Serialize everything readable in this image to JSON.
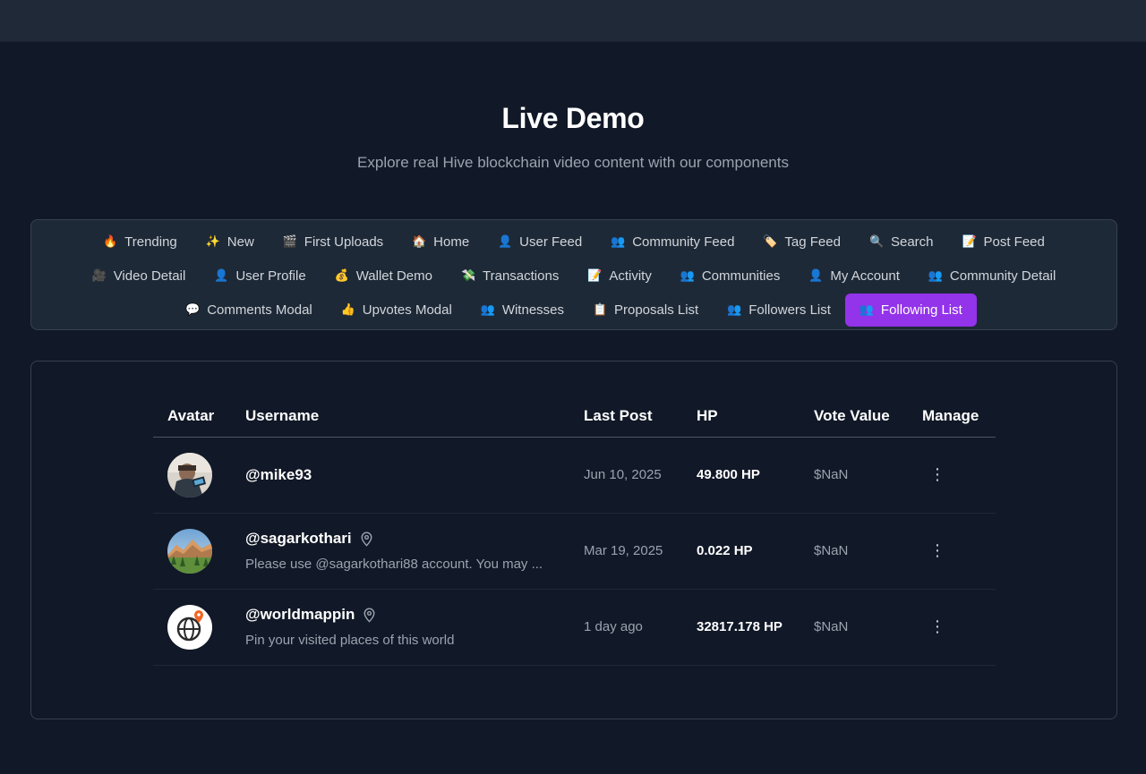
{
  "page": {
    "title": "Live Demo",
    "subtitle": "Explore real Hive blockchain video content with our components"
  },
  "tabs": [
    [
      {
        "icon": "🔥",
        "label": "Trending"
      },
      {
        "icon": "✨",
        "label": "New"
      },
      {
        "icon": "🎬",
        "label": "First Uploads"
      },
      {
        "icon": "🏠",
        "label": "Home"
      },
      {
        "icon": "👤",
        "label": "User Feed"
      },
      {
        "icon": "👥",
        "label": "Community Feed"
      },
      {
        "icon": "🏷️",
        "label": "Tag Feed"
      },
      {
        "icon": "🔍",
        "label": "Search"
      },
      {
        "icon": "📝",
        "label": "Post Feed"
      }
    ],
    [
      {
        "icon": "🎥",
        "label": "Video Detail"
      },
      {
        "icon": "👤",
        "label": "User Profile"
      },
      {
        "icon": "💰",
        "label": "Wallet Demo"
      },
      {
        "icon": "💸",
        "label": "Transactions"
      },
      {
        "icon": "📝",
        "label": "Activity"
      },
      {
        "icon": "👥",
        "label": "Communities"
      },
      {
        "icon": "👤",
        "label": "My Account"
      },
      {
        "icon": "👥",
        "label": "Community Detail"
      }
    ],
    [
      {
        "icon": "💬",
        "label": "Comments Modal"
      },
      {
        "icon": "👍",
        "label": "Upvotes Modal"
      },
      {
        "icon": "👥",
        "label": "Witnesses"
      },
      {
        "icon": "📋",
        "label": "Proposals List"
      },
      {
        "icon": "👥",
        "label": "Followers List"
      },
      {
        "icon": "👥",
        "label": "Following List",
        "active": true
      }
    ]
  ],
  "table": {
    "headers": {
      "avatar": "Avatar",
      "username": "Username",
      "last_post": "Last Post",
      "hp": "HP",
      "vote_value": "Vote Value",
      "manage": "Manage"
    },
    "rows": [
      {
        "username": "@mike93",
        "bio": "",
        "location_icon": false,
        "last_post": "Jun 10, 2025",
        "hp": "49.800 HP",
        "vote_value": "$NaN",
        "avatar": "person-photo"
      },
      {
        "username": "@sagarkothari",
        "bio": "Please use @sagarkothari88 account. You may ...",
        "location_icon": true,
        "last_post": "Mar 19, 2025",
        "hp": "0.022 HP",
        "vote_value": "$NaN",
        "avatar": "mountain-landscape"
      },
      {
        "username": "@worldmappin",
        "bio": "Pin your visited places of this world",
        "location_icon": true,
        "last_post": "1 day ago",
        "hp": "32817.178 HP",
        "vote_value": "$NaN",
        "avatar": "globe-pin-logo"
      }
    ]
  },
  "icons": {
    "menu": "⋮",
    "location": "location-pin-icon"
  },
  "colors": {
    "accent": "#9333ea",
    "background": "#111827",
    "panel": "#1e2937",
    "border": "#374151"
  }
}
